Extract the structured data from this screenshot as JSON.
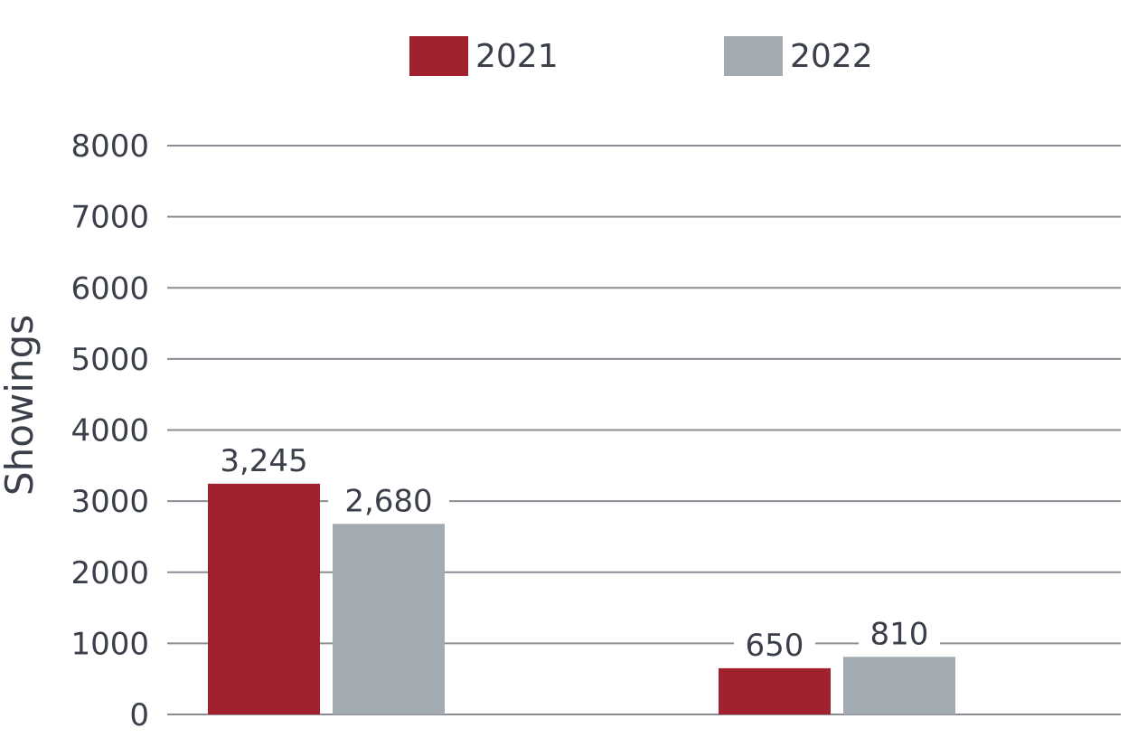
{
  "chart_data": {
    "type": "bar",
    "categories": [
      "",
      ""
    ],
    "series": [
      {
        "name": "2021",
        "values": [
          3245,
          650
        ],
        "labels": [
          "3,245",
          "650"
        ],
        "color": "#a0222f"
      },
      {
        "name": "2022",
        "values": [
          2680,
          810
        ],
        "labels": [
          "2,680",
          "810"
        ],
        "color": "#a2abb1"
      }
    ],
    "ylabel": "Showings",
    "ylim": [
      0,
      8000
    ],
    "yticks": [
      0,
      1000,
      2000,
      3000,
      4000,
      5000,
      6000,
      7000,
      8000
    ],
    "ytick_labels": [
      "0",
      "1000",
      "2000",
      "3000",
      "4000",
      "5000",
      "6000",
      "7000",
      "8000"
    ],
    "grid": true,
    "legend_position": "top-center"
  }
}
